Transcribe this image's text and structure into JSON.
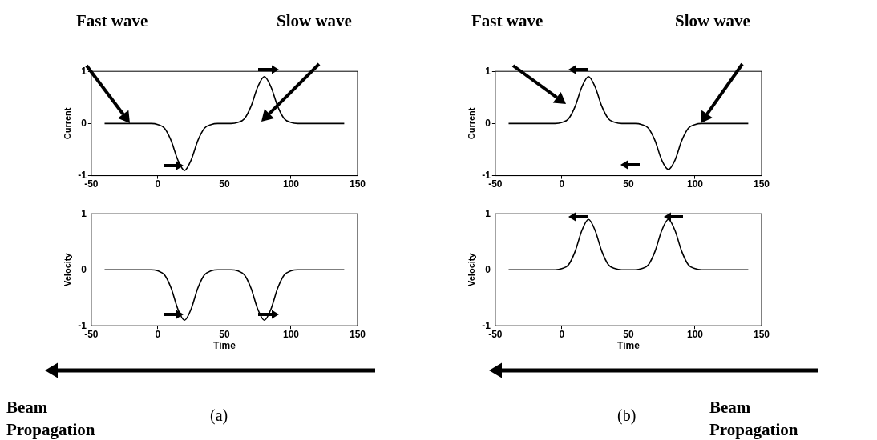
{
  "chart_data": [
    {
      "type": "line",
      "ylabel": "Current",
      "annotations": [
        "Fast wave",
        "Slow wave"
      ],
      "xlim": [
        -50,
        150
      ],
      "xticks": [
        -50,
        0,
        50,
        100,
        150
      ],
      "ylim": [
        -1,
        1
      ],
      "yticks": [
        -1,
        0,
        1
      ],
      "grid": false,
      "legend": false,
      "x": [
        -40,
        -35,
        -30,
        -25,
        -20,
        -15,
        -10,
        -5,
        0,
        5,
        10,
        15,
        20,
        25,
        30,
        35,
        40,
        45,
        50,
        55,
        60,
        65,
        70,
        75,
        80,
        85,
        90,
        95,
        100,
        105,
        110,
        115,
        120,
        125,
        130,
        135,
        140
      ],
      "series": [
        {
          "color": "#000000",
          "values": [
            0,
            0,
            0,
            0,
            0,
            0,
            0,
            0,
            -0.02,
            -0.09,
            -0.33,
            -0.7,
            -0.9,
            -0.7,
            -0.33,
            -0.09,
            -0.02,
            0,
            0,
            0,
            0.02,
            0.09,
            0.33,
            0.7,
            0.9,
            0.7,
            0.33,
            0.09,
            0.02,
            0,
            0,
            0,
            0,
            0,
            0,
            0,
            0
          ]
        }
      ]
    },
    {
      "type": "line",
      "ylabel": "Velocity",
      "xlabel": "Time",
      "annotations": [
        "Beam Propagation",
        "(a)"
      ],
      "xlim": [
        -50,
        150
      ],
      "xticks": [
        -50,
        0,
        50,
        100,
        150
      ],
      "ylim": [
        -1,
        1
      ],
      "yticks": [
        -1,
        0,
        1
      ],
      "grid": false,
      "legend": false,
      "x": [
        -40,
        -35,
        -30,
        -25,
        -20,
        -15,
        -10,
        -5,
        0,
        5,
        10,
        15,
        20,
        25,
        30,
        35,
        40,
        45,
        50,
        55,
        60,
        65,
        70,
        75,
        80,
        85,
        90,
        95,
        100,
        105,
        110,
        115,
        120,
        125,
        130,
        135,
        140
      ],
      "series": [
        {
          "color": "#000000",
          "values": [
            0,
            0,
            0,
            0,
            0,
            0,
            0,
            0,
            -0.02,
            -0.09,
            -0.33,
            -0.7,
            -0.9,
            -0.7,
            -0.33,
            -0.09,
            -0.02,
            0,
            0,
            0,
            -0.02,
            -0.09,
            -0.33,
            -0.7,
            -0.9,
            -0.7,
            -0.33,
            -0.09,
            -0.02,
            0,
            0,
            0,
            0,
            0,
            0,
            0,
            0
          ]
        }
      ]
    },
    {
      "type": "line",
      "ylabel": "Current",
      "annotations": [
        "Fast wave",
        "Slow wave"
      ],
      "xlim": [
        -50,
        150
      ],
      "xticks": [
        -50,
        0,
        50,
        100,
        150
      ],
      "ylim": [
        -1,
        1
      ],
      "yticks": [
        -1,
        0,
        1
      ],
      "grid": false,
      "legend": false,
      "x": [
        -40,
        -35,
        -30,
        -25,
        -20,
        -15,
        -10,
        -5,
        0,
        5,
        10,
        15,
        20,
        25,
        30,
        35,
        40,
        45,
        50,
        55,
        60,
        65,
        70,
        75,
        80,
        85,
        90,
        95,
        100,
        105,
        110,
        115,
        120,
        125,
        130,
        135,
        140
      ],
      "series": [
        {
          "color": "#000000",
          "values": [
            0,
            0,
            0,
            0,
            0,
            0,
            0,
            0,
            0.02,
            0.09,
            0.33,
            0.7,
            0.9,
            0.7,
            0.33,
            0.09,
            0.02,
            0,
            0,
            0,
            -0.02,
            -0.09,
            -0.33,
            -0.7,
            -0.88,
            -0.7,
            -0.33,
            -0.09,
            -0.02,
            0,
            0,
            0,
            0,
            0,
            0,
            0,
            0
          ]
        }
      ]
    },
    {
      "type": "line",
      "ylabel": "Velocity",
      "xlabel": "Time",
      "annotations": [
        "(b)",
        "Beam Propagation"
      ],
      "xlim": [
        -50,
        150
      ],
      "xticks": [
        -50,
        0,
        50,
        100,
        150
      ],
      "ylim": [
        -1,
        1
      ],
      "yticks": [
        -1,
        0,
        1
      ],
      "grid": false,
      "legend": false,
      "x": [
        -40,
        -35,
        -30,
        -25,
        -20,
        -15,
        -10,
        -5,
        0,
        5,
        10,
        15,
        20,
        25,
        30,
        35,
        40,
        45,
        50,
        55,
        60,
        65,
        70,
        75,
        80,
        85,
        90,
        95,
        100,
        105,
        110,
        115,
        120,
        125,
        130,
        135,
        140
      ],
      "series": [
        {
          "color": "#000000",
          "values": [
            0,
            0,
            0,
            0,
            0,
            0,
            0,
            0,
            0.02,
            0.09,
            0.33,
            0.7,
            0.9,
            0.7,
            0.33,
            0.09,
            0.02,
            0,
            0,
            0,
            0.02,
            0.09,
            0.33,
            0.7,
            0.9,
            0.7,
            0.33,
            0.09,
            0.02,
            0,
            0,
            0,
            0,
            0,
            0,
            0,
            0
          ]
        }
      ]
    }
  ]
}
